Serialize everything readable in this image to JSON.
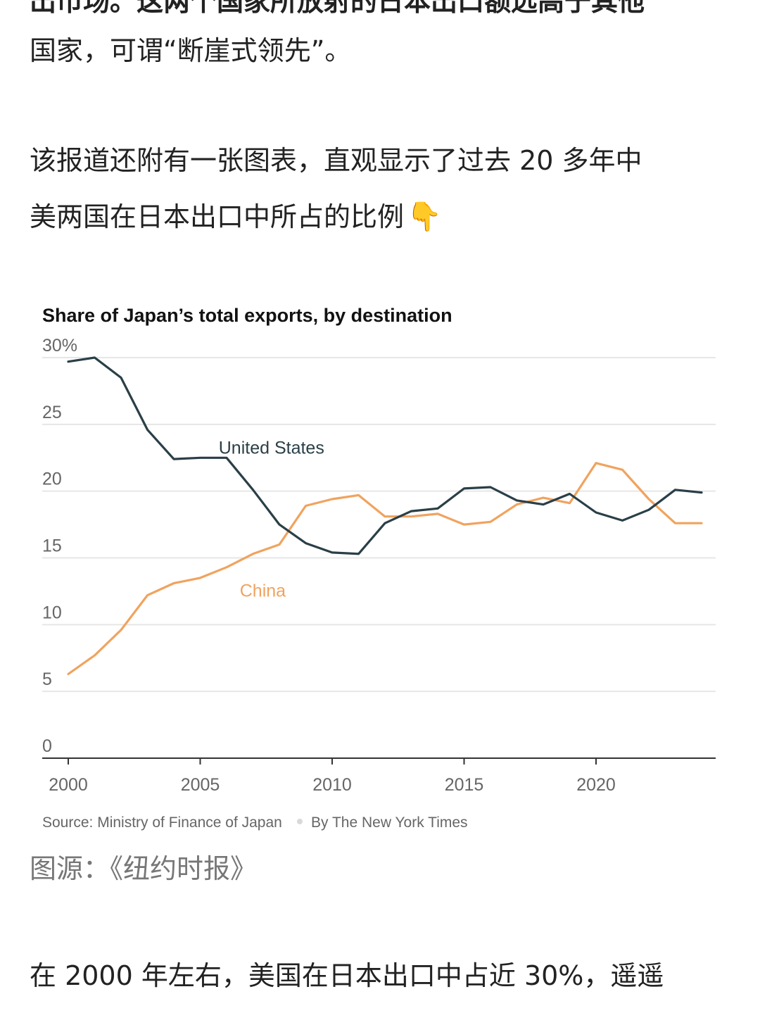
{
  "article": {
    "top_line_1": "出市场。这两个国家所放射的日本出口额远高于其他",
    "top_line_2": "国家，可谓“断崖式领先”。",
    "mid_line_1": "该报道还附有一张图表，直观显示了过去 20 多年中",
    "mid_line_2": "美两国在日本出口中所占的比例",
    "hand_emoji": "👇",
    "caption": "图源：《纽约时报》",
    "bottom_line": "在 2000 年左右，美国在日本出口中占近 30%，遥遥"
  },
  "colors": {
    "us": "#2a3f47",
    "china": "#f0a35e",
    "grid": "#e6e6e6",
    "axis": "#333333",
    "text": "#222222",
    "muted": "#666666"
  },
  "chart_data": {
    "type": "line",
    "title": "Share of Japan’s total exports, by destination",
    "xlabel": "",
    "ylabel": "",
    "xlim": [
      2000,
      2024
    ],
    "ylim": [
      0,
      30
    ],
    "x_ticks": [
      2000,
      2005,
      2010,
      2015,
      2020
    ],
    "x_tick_labels": [
      "2000",
      "2005",
      "2010",
      "2015",
      "2020"
    ],
    "y_ticks": [
      0,
      5,
      10,
      15,
      20,
      25,
      30
    ],
    "y_tick_labels": [
      "0",
      "5",
      "10",
      "15",
      "20",
      "25",
      "30%"
    ],
    "grid": true,
    "legend": "inline labels",
    "x": [
      2000,
      2001,
      2002,
      2003,
      2004,
      2005,
      2006,
      2007,
      2008,
      2009,
      2010,
      2011,
      2012,
      2013,
      2014,
      2015,
      2016,
      2017,
      2018,
      2019,
      2020,
      2021,
      2022,
      2023,
      2024
    ],
    "series": [
      {
        "name": "United States",
        "values": [
          29.7,
          30.0,
          28.5,
          24.6,
          22.4,
          22.5,
          22.5,
          20.1,
          17.5,
          16.1,
          15.4,
          15.3,
          17.6,
          18.5,
          18.7,
          20.2,
          20.3,
          19.3,
          19.0,
          19.8,
          18.4,
          17.8,
          18.6,
          20.1,
          19.9
        ],
        "label_x": 2005.7,
        "label_y": 22.8
      },
      {
        "name": "China",
        "values": [
          6.3,
          7.7,
          9.6,
          12.2,
          13.1,
          13.5,
          14.3,
          15.3,
          16.0,
          18.9,
          19.4,
          19.7,
          18.1,
          18.1,
          18.3,
          17.5,
          17.7,
          19.0,
          19.5,
          19.1,
          22.1,
          21.6,
          19.4,
          17.6,
          17.6
        ],
        "label_x": 2006.5,
        "label_y": 12.1
      }
    ],
    "source": "Source: Ministry of Finance of Japan",
    "credit": "By The New York Times"
  }
}
